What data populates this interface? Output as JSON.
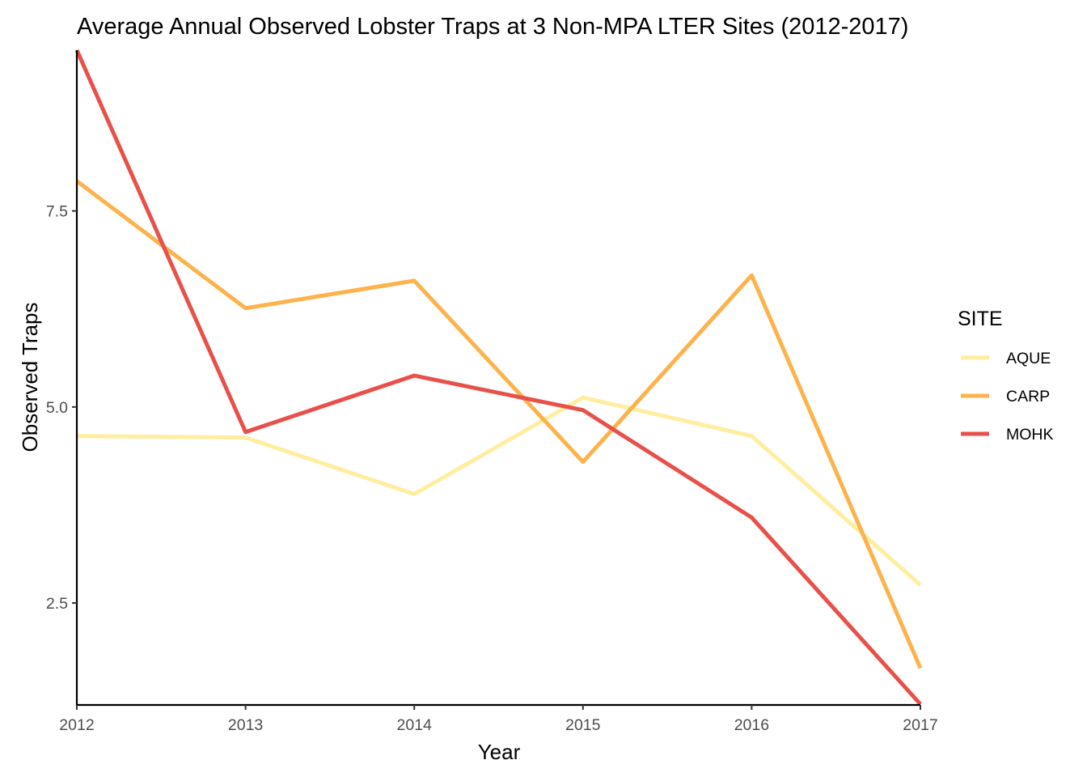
{
  "chart_data": {
    "type": "line",
    "title": "Average Annual Observed Lobster Traps at 3 Non-MPA LTER Sites (2012-2017)",
    "xlabel": "Year",
    "ylabel": "Observed Traps",
    "x": [
      2012,
      2013,
      2014,
      2015,
      2016,
      2017
    ],
    "xlim": [
      2012,
      2017
    ],
    "ylim": [
      1.2,
      9.55
    ],
    "x_ticks": [
      2012,
      2013,
      2014,
      2015,
      2016,
      2017
    ],
    "y_ticks": [
      2.5,
      5.0,
      7.5
    ],
    "y_tick_labels": [
      "2.5",
      "5.0",
      "7.5"
    ],
    "grid": false,
    "legend": {
      "title": "SITE",
      "position": "right"
    },
    "series": [
      {
        "name": "AQUE",
        "color": "#FFEDA0",
        "values": [
          4.63,
          4.61,
          3.89,
          5.12,
          4.63,
          2.73
        ]
      },
      {
        "name": "CARP",
        "color": "#FEB24C",
        "values": [
          7.88,
          6.26,
          6.61,
          4.3,
          6.68,
          1.67
        ]
      },
      {
        "name": "MOHK",
        "color": "#E8504A",
        "values": [
          9.55,
          4.68,
          5.4,
          4.96,
          3.59,
          1.21
        ]
      }
    ]
  }
}
